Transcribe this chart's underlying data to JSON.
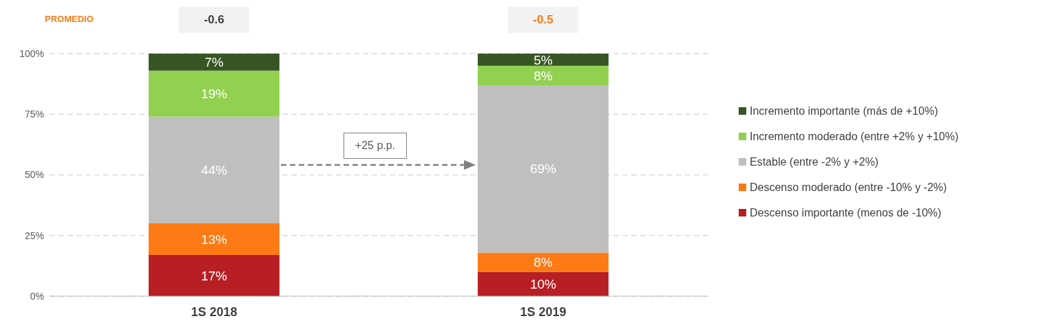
{
  "chart_data": {
    "type": "bar",
    "stacked": true,
    "categories": [
      "1S 2018",
      "1S 2019"
    ],
    "series": [
      {
        "name": "Descenso importante (menos de -10%)",
        "color": "#b71f24",
        "values": [
          17,
          10
        ],
        "value_labels": [
          "17%",
          "10%"
        ]
      },
      {
        "name": "Descenso moderado (entre -10% y -2%)",
        "color": "#fd7a14",
        "values": [
          13,
          8
        ],
        "value_labels": [
          "13%",
          "8%"
        ]
      },
      {
        "name": "Estable (entre -2% y +2%)",
        "color": "#bfbfbf",
        "values": [
          44,
          69
        ],
        "value_labels": [
          "44%",
          "69%"
        ]
      },
      {
        "name": "Incremento moderado (entre +2% y +10%)",
        "color": "#92d050",
        "values": [
          19,
          8
        ],
        "value_labels": [
          "19%",
          "8%"
        ]
      },
      {
        "name": "Incremento importante (más de +10%)",
        "color": "#375623",
        "values": [
          7,
          5
        ],
        "value_labels": [
          "7%",
          "5%"
        ]
      }
    ],
    "ylim": [
      0,
      100
    ],
    "yticks": [
      {
        "value": 0,
        "label": "0%"
      },
      {
        "value": 25,
        "label": "25%"
      },
      {
        "value": 50,
        "label": "50%"
      },
      {
        "value": 75,
        "label": "75%"
      },
      {
        "value": 100,
        "label": "100%"
      }
    ],
    "grid": "y",
    "legend": "right",
    "annotations": [
      "PROMEDIO",
      "-0.6",
      "-0.5",
      "+25 p.p."
    ]
  }
}
